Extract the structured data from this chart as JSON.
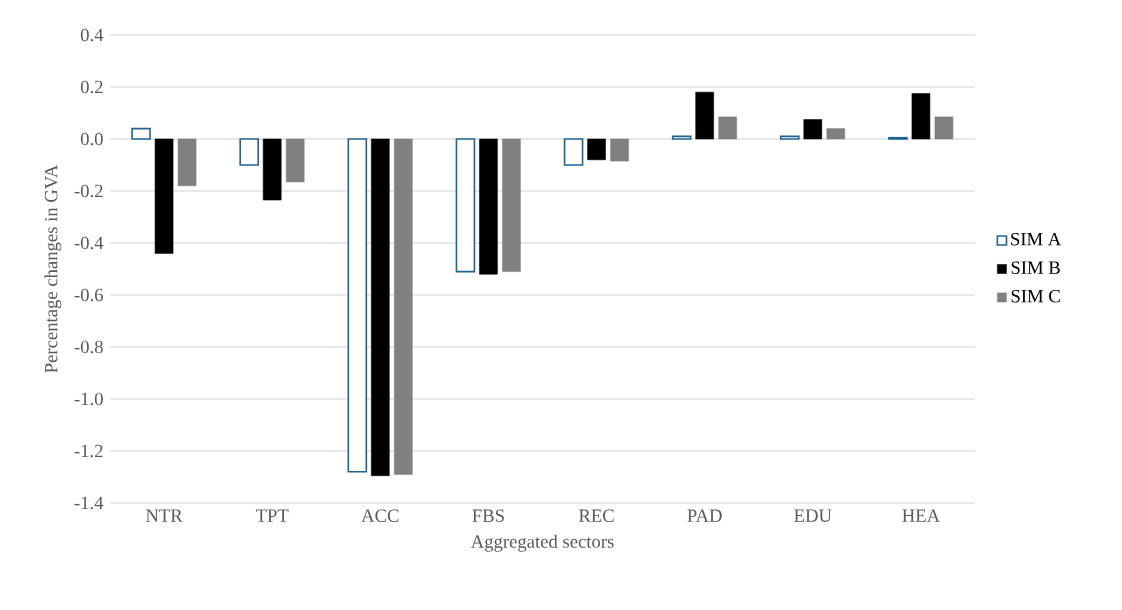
{
  "chart_data": {
    "type": "bar",
    "xlabel": "Aggregated sectors",
    "ylabel": "Percentage changes in GVA",
    "categories": [
      "NTR",
      "TPT",
      "ACC",
      "FBS",
      "REC",
      "PAD",
      "EDU",
      "HEA"
    ],
    "series": [
      {
        "name": "SIM A",
        "color": "#1f6391",
        "values": [
          0.04,
          -0.1,
          -1.28,
          -0.51,
          -0.1,
          0.01,
          0.01,
          0.005
        ]
      },
      {
        "name": "SIM B",
        "color": "#000000",
        "values": [
          -0.44,
          -0.235,
          -1.295,
          -0.52,
          -0.08,
          0.18,
          0.075,
          0.175
        ]
      },
      {
        "name": "SIM C",
        "color": "#808080",
        "values": [
          -0.18,
          -0.165,
          -1.29,
          -0.51,
          -0.085,
          0.085,
          0.04,
          0.085
        ]
      }
    ],
    "ylim": [
      -1.4,
      0.4
    ],
    "yticks": [
      {
        "value": -1.4,
        "label": "-1.4"
      },
      {
        "value": -1.2,
        "label": "-1.2"
      },
      {
        "value": -1.0,
        "label": "-1.0"
      },
      {
        "value": -0.8,
        "label": "-0.8"
      },
      {
        "value": -0.6,
        "label": "-0.6"
      },
      {
        "value": -0.4,
        "label": "-0.4"
      },
      {
        "value": -0.2,
        "label": "-0.2"
      },
      {
        "value": 0.0,
        "label": "0.0"
      },
      {
        "value": 0.2,
        "label": "0.2"
      },
      {
        "value": 0.4,
        "label": "0.4"
      }
    ],
    "grid": "y",
    "legend": "right"
  }
}
